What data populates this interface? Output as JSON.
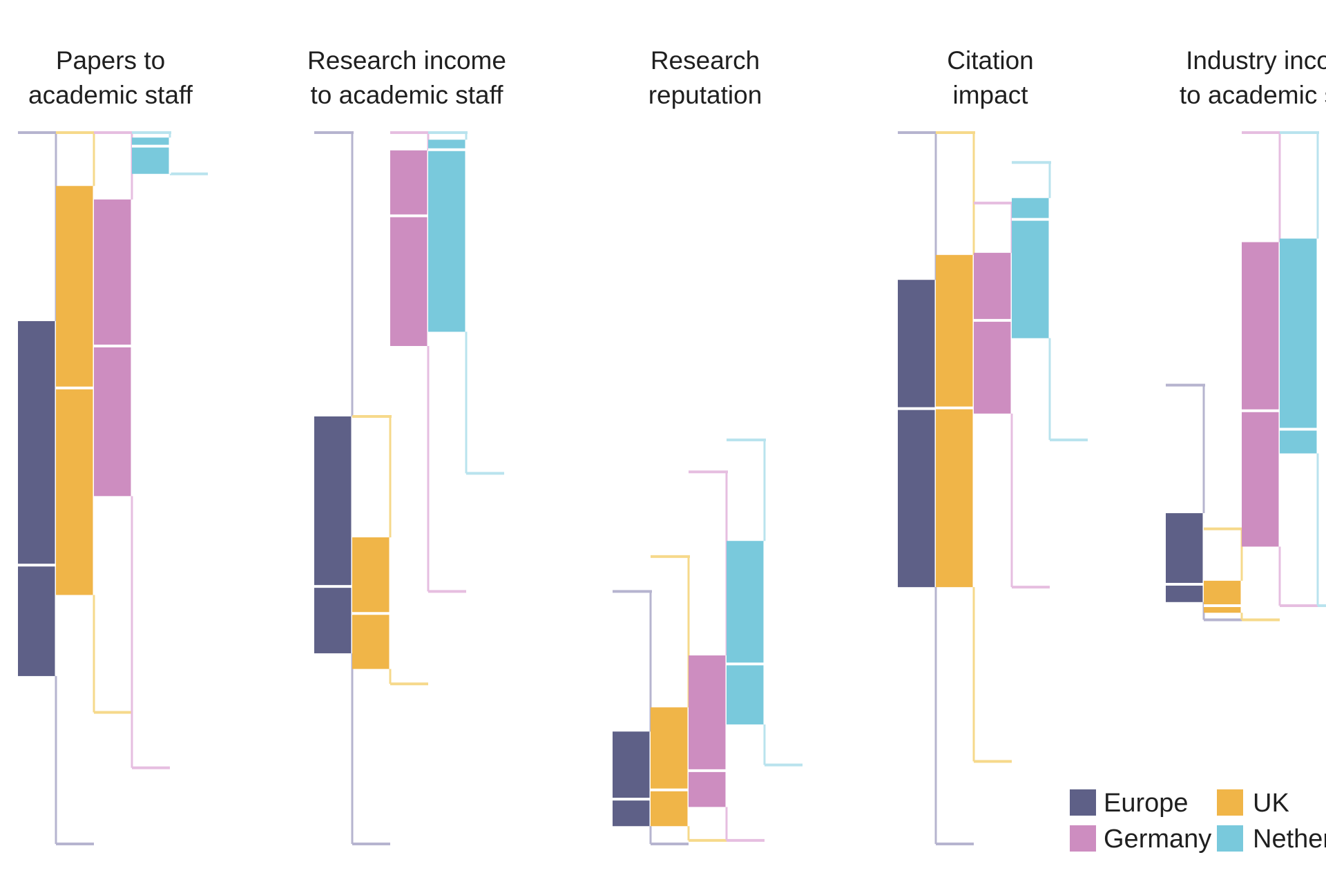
{
  "chart_data": {
    "type": "box",
    "title": "",
    "xlabel": "",
    "ylabel": "",
    "ylim": [
      0,
      100
    ],
    "grid": false,
    "legend_position": "bottom-right",
    "series_colors": {
      "Europe": "#5e6087",
      "UK": "#f0b548",
      "Germany": "#cd8dc0",
      "Netherlands": "#79c9dc"
    },
    "legend": [
      "Europe",
      "UK",
      "Germany",
      "Netherlands"
    ],
    "legend_labels": [
      "Europe",
      "UK",
      "Germany",
      "Nether"
    ],
    "panels": [
      {
        "title": [
          "Papers to",
          "academic staff"
        ],
        "boxes": [
          {
            "series": "Europe",
            "min": 0,
            "q1": 23.6,
            "median": 39.2,
            "q3": 73.5,
            "max": 100
          },
          {
            "series": "UK",
            "min": 18.5,
            "q1": 35.0,
            "median": 64.1,
            "q3": 92.5,
            "max": 100
          },
          {
            "series": "Germany",
            "min": 10.7,
            "q1": 48.9,
            "median": 70.0,
            "q3": 90.6,
            "max": 100
          },
          {
            "series": "Netherlands",
            "min": 94.2,
            "q1": 94.2,
            "median": 98.1,
            "q3": 99.3,
            "max": 100
          }
        ]
      },
      {
        "title": [
          "Research income",
          "to academic staff"
        ],
        "boxes": [
          {
            "series": "Europe",
            "min": 0,
            "q1": 26.8,
            "median": 36.2,
            "q3": 60.1,
            "max": 100
          },
          {
            "series": "UK",
            "min": 22.5,
            "q1": 24.6,
            "median": 32.4,
            "q3": 43.1,
            "max": 60.1
          },
          {
            "series": "Germany",
            "min": 35.5,
            "q1": 70.0,
            "median": 88.3,
            "q3": 97.5,
            "max": 100
          },
          {
            "series": "Netherlands",
            "min": 52.1,
            "q1": 72.0,
            "median": 97.6,
            "q3": 99.0,
            "max": 100
          }
        ]
      },
      {
        "title": [
          "Research",
          "reputation"
        ],
        "boxes": [
          {
            "series": "Europe",
            "min": 0,
            "q1": 2.5,
            "median": 6.3,
            "q3": 15.8,
            "max": 35.5
          },
          {
            "series": "UK",
            "min": 0.5,
            "q1": 2.5,
            "median": 7.6,
            "q3": 19.2,
            "max": 40.4
          },
          {
            "series": "Germany",
            "min": 0.5,
            "q1": 5.2,
            "median": 10.3,
            "q3": 26.5,
            "max": 52.3
          },
          {
            "series": "Netherlands",
            "min": 11.1,
            "q1": 16.8,
            "median": 25.3,
            "q3": 42.6,
            "max": 56.8
          }
        ]
      },
      {
        "title": [
          "Citation",
          "impact"
        ],
        "boxes": [
          {
            "series": "Europe",
            "min": 0,
            "q1": 36.1,
            "median": 61.2,
            "q3": 79.3,
            "max": 100
          },
          {
            "series": "UK",
            "min": 11.6,
            "q1": 36.1,
            "median": 61.3,
            "q3": 82.8,
            "max": 100
          },
          {
            "series": "Germany",
            "min": 36.1,
            "q1": 60.5,
            "median": 73.6,
            "q3": 83.1,
            "max": 90.1
          },
          {
            "series": "Netherlands",
            "min": 56.8,
            "q1": 71.1,
            "median": 87.8,
            "q3": 90.8,
            "max": 95.8
          }
        ]
      },
      {
        "title": [
          "Industry inco",
          "to academic s"
        ],
        "boxes": [
          {
            "series": "Europe",
            "min": 31.5,
            "q1": 34.0,
            "median": 36.5,
            "q3": 46.5,
            "max": 64.5
          },
          {
            "series": "UK",
            "min": 31.5,
            "q1": 32.5,
            "median": 33.5,
            "q3": 37.0,
            "max": 44.3
          },
          {
            "series": "Germany",
            "min": 33.5,
            "q1": 41.8,
            "median": 60.9,
            "q3": 84.6,
            "max": 100
          },
          {
            "series": "Netherlands",
            "min": 33.5,
            "q1": 54.9,
            "median": 58.3,
            "q3": 85.1,
            "max": 100
          }
        ]
      }
    ]
  }
}
